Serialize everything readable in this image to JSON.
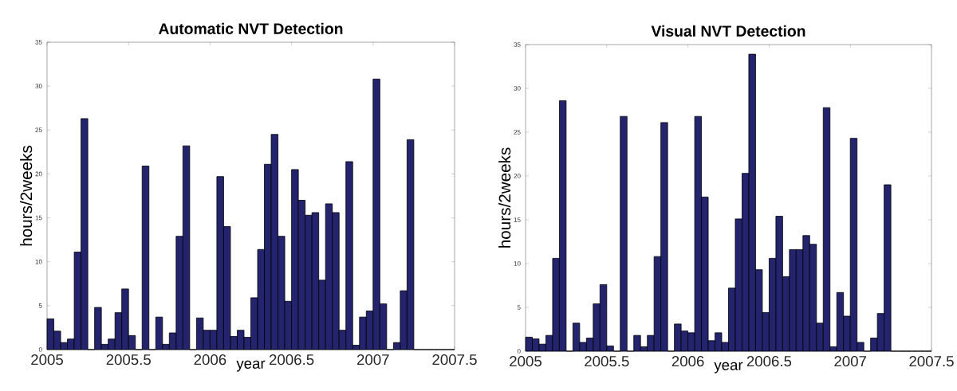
{
  "chart_data": [
    {
      "type": "histogram",
      "title": "Automatic NVT Detection",
      "xlabel": "year",
      "ylabel": "hours/2weeks",
      "color": "#23236e",
      "bins": [
        2005,
        2005.0417,
        2005.0833,
        2005.125,
        2005.1667,
        2005.2083,
        2005.25,
        2005.2917,
        2005.3333,
        2005.375,
        2005.4167,
        2005.4583,
        2005.5,
        2005.5417,
        2005.5833,
        2005.625,
        2005.6667,
        2005.7083,
        2005.75,
        2005.7917,
        2005.8333,
        2005.875,
        2005.9167,
        2005.9583,
        2006,
        2006.0417,
        2006.0833,
        2006.125,
        2006.1667,
        2006.2083,
        2006.25,
        2006.2917,
        2006.3333,
        2006.375,
        2006.4167,
        2006.4583,
        2006.5,
        2006.5417,
        2006.5833,
        2006.625,
        2006.6667,
        2006.7083,
        2006.75,
        2006.7917,
        2006.8333,
        2006.875,
        2006.9167,
        2006.9583,
        2007,
        2007.0417,
        2007.0833,
        2007.125,
        2007.1667,
        2007.2083,
        2007.25,
        2007.2917,
        2007.3333,
        2007.375,
        2007.4167,
        2007.4583,
        2007.5
      ],
      "values": [
        3.5,
        2.1,
        0.8,
        1.2,
        11.1,
        26.3,
        0,
        4.8,
        0.6,
        1.2,
        4.2,
        6.9,
        1.6,
        0,
        20.9,
        0,
        3.7,
        0.6,
        1.9,
        12.9,
        23.2,
        0,
        3.6,
        2.2,
        2.2,
        19.7,
        14.0,
        1.5,
        2.2,
        1.4,
        5.9,
        11.4,
        21.1,
        24.5,
        12.9,
        5.5,
        20.5,
        17.0,
        15.3,
        15.6,
        7.9,
        16.6,
        15.6,
        2.2,
        21.4,
        0.5,
        3.7,
        4.4,
        30.8,
        5.2,
        0,
        0.8,
        6.7,
        23.9,
        0,
        0,
        0,
        0,
        0,
        0
      ],
      "xlim": [
        2005,
        2007.5
      ],
      "xticks": [
        2005,
        2005.5,
        2006,
        2006.5,
        2007,
        2007.5
      ],
      "ylim": [
        0,
        35
      ],
      "yticks": [
        0,
        5,
        10,
        15,
        20,
        25,
        30,
        35
      ]
    },
    {
      "type": "histogram",
      "title": "Visual NVT Detection",
      "xlabel": "year",
      "ylabel": "hours/2weeks",
      "color": "#23236e",
      "bins": [
        2005,
        2005.0417,
        2005.0833,
        2005.125,
        2005.1667,
        2005.2083,
        2005.25,
        2005.2917,
        2005.3333,
        2005.375,
        2005.4167,
        2005.4583,
        2005.5,
        2005.5417,
        2005.5833,
        2005.625,
        2005.6667,
        2005.7083,
        2005.75,
        2005.7917,
        2005.8333,
        2005.875,
        2005.9167,
        2005.9583,
        2006,
        2006.0417,
        2006.0833,
        2006.125,
        2006.1667,
        2006.2083,
        2006.25,
        2006.2917,
        2006.3333,
        2006.375,
        2006.4167,
        2006.4583,
        2006.5,
        2006.5417,
        2006.5833,
        2006.625,
        2006.6667,
        2006.7083,
        2006.75,
        2006.7917,
        2006.8333,
        2006.875,
        2006.9167,
        2006.9583,
        2007,
        2007.0417,
        2007.0833,
        2007.125,
        2007.1667,
        2007.2083,
        2007.25,
        2007.2917,
        2007.3333,
        2007.375,
        2007.4167,
        2007.4583,
        2007.5
      ],
      "values": [
        1.6,
        1.4,
        0.8,
        1.8,
        10.6,
        28.6,
        0,
        3.2,
        1.0,
        1.5,
        5.4,
        7.6,
        0.6,
        0,
        26.8,
        0,
        1.8,
        0.5,
        1.8,
        10.8,
        26.1,
        0,
        3.1,
        2.3,
        2.1,
        26.8,
        17.6,
        1.2,
        2.1,
        1.0,
        7.2,
        15.1,
        20.3,
        33.9,
        9.3,
        4.4,
        10.6,
        15.4,
        8.5,
        11.6,
        11.6,
        13.2,
        12.2,
        3.2,
        27.8,
        0.5,
        6.7,
        4.0,
        24.3,
        1.0,
        0,
        1.5,
        4.3,
        19.0,
        0,
        0,
        0,
        0,
        0,
        0
      ],
      "xlim": [
        2005,
        2007.5
      ],
      "xticks": [
        2005,
        2005.5,
        2006,
        2006.5,
        2007,
        2007.5
      ],
      "ylim": [
        0,
        35
      ],
      "yticks": [
        0,
        5,
        10,
        15,
        20,
        25,
        30,
        35
      ]
    }
  ]
}
